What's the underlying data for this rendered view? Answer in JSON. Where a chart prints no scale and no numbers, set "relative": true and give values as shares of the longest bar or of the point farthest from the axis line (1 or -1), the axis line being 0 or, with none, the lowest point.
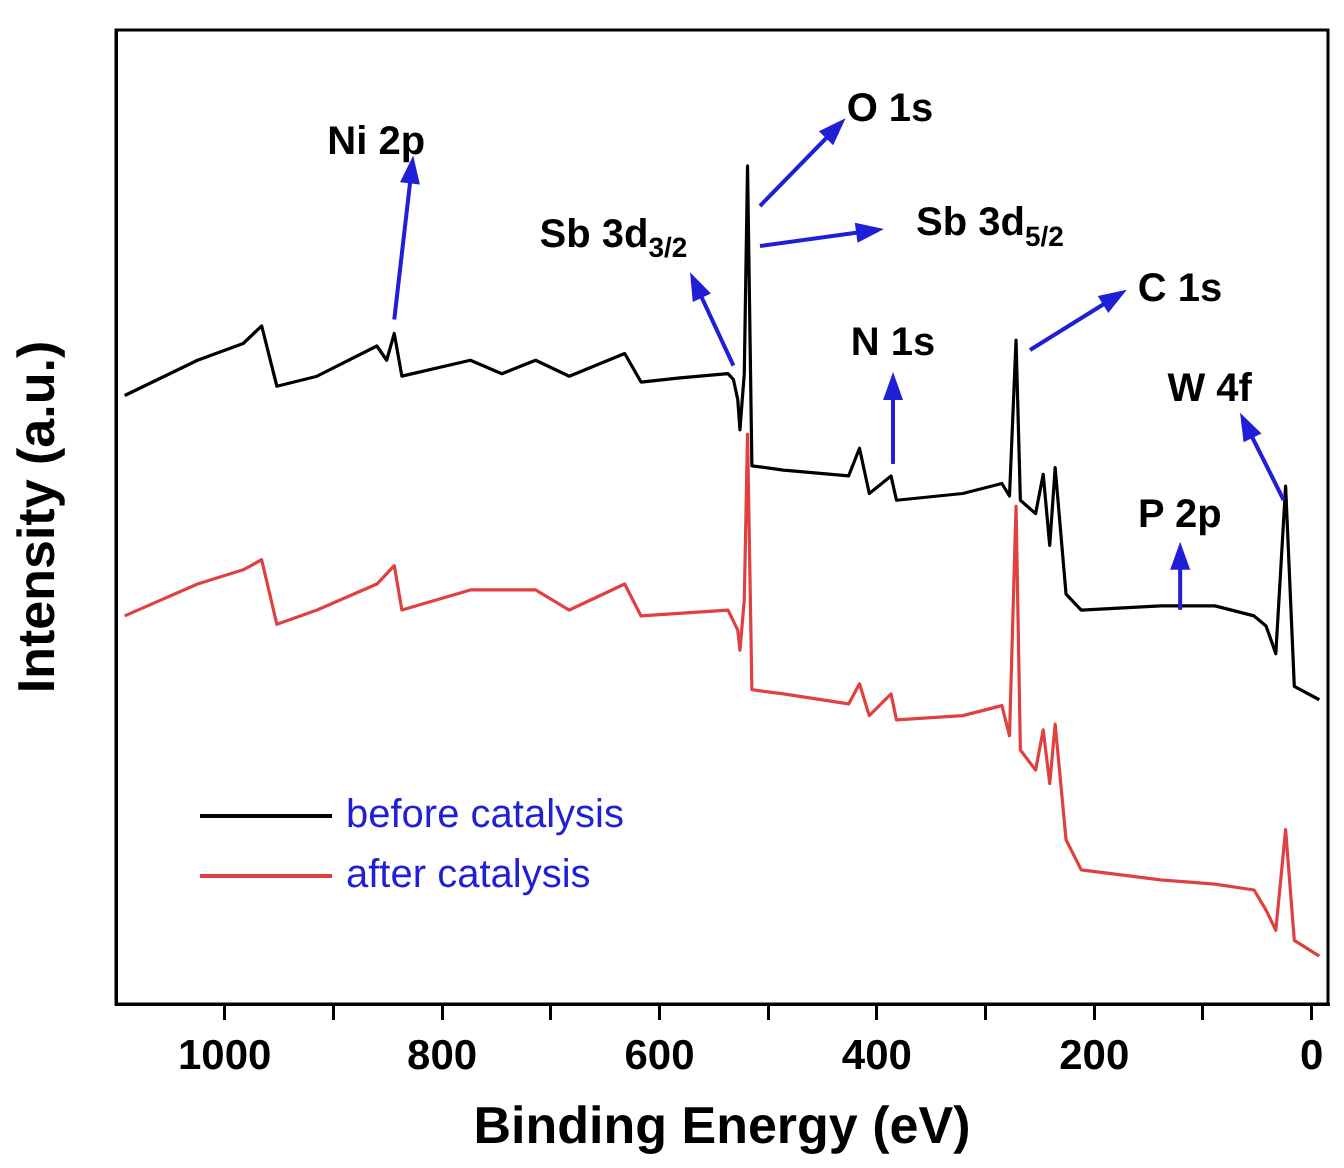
{
  "chart_data": {
    "type": "line",
    "relative": true,
    "xlabel": "Binding Energy (eV)",
    "ylabel": "Intensity (a.u.)",
    "xlim": [
      1100,
      -15
    ],
    "xticks": [
      1000,
      {
        "value": 900,
        "label": null
      },
      800,
      {
        "value": 700,
        "label": null
      },
      600,
      {
        "value": 500,
        "label": null
      },
      400,
      {
        "value": 300,
        "label": null
      },
      200,
      {
        "value": 100,
        "label": null
      },
      0
    ],
    "legend": "bottom left",
    "grid": false,
    "marker": "none",
    "line_style": "solid",
    "series": [
      {
        "name": "before catalysis",
        "color": "#000000",
        "x": [
          1092,
          1025,
          983,
          966,
          952,
          915,
          860,
          851,
          844,
          837,
          774,
          745,
          714,
          683,
          632,
          617,
          581,
          537,
          532,
          528,
          526,
          522,
          519,
          515,
          486,
          426,
          416,
          407,
          387,
          382,
          321,
          285,
          278,
          272,
          268,
          254,
          247,
          241,
          236,
          226,
          212,
          139,
          89,
          53,
          42,
          33,
          24,
          16,
          -7
        ],
        "values": [
          0.726,
          0.768,
          0.788,
          0.809,
          0.737,
          0.749,
          0.785,
          0.768,
          0.8,
          0.749,
          0.768,
          0.752,
          0.768,
          0.749,
          0.776,
          0.742,
          0.747,
          0.752,
          0.745,
          0.721,
          0.685,
          0.752,
          1,
          0.642,
          0.637,
          0.63,
          0.663,
          0.609,
          0.63,
          0.601,
          0.609,
          0.621,
          0.606,
          0.792,
          0.601,
          0.585,
          0.632,
          0.547,
          0.64,
          0.489,
          0.47,
          0.475,
          0.475,
          0.463,
          0.451,
          0.418,
          0.618,
          0.379,
          0.363
        ]
      },
      {
        "name": "after catalysis",
        "color": "#e04040",
        "x": [
          1092,
          1025,
          983,
          966,
          952,
          915,
          860,
          844,
          837,
          774,
          714,
          683,
          632,
          617,
          537,
          528,
          526,
          522,
          519,
          515,
          486,
          426,
          416,
          407,
          387,
          382,
          321,
          285,
          278,
          272,
          268,
          254,
          247,
          241,
          236,
          226,
          212,
          139,
          89,
          53,
          42,
          33,
          24,
          16,
          -7
        ],
        "values": [
          0.463,
          0.501,
          0.518,
          0.53,
          0.453,
          0.47,
          0.501,
          0.523,
          0.47,
          0.494,
          0.494,
          0.47,
          0.501,
          0.463,
          0.47,
          0.446,
          0.422,
          0.482,
          0.68,
          0.375,
          0.37,
          0.358,
          0.382,
          0.344,
          0.37,
          0.339,
          0.344,
          0.356,
          0.32,
          0.594,
          0.303,
          0.279,
          0.327,
          0.263,
          0.334,
          0.196,
          0.16,
          0.148,
          0.143,
          0.136,
          0.112,
          0.088,
          0.208,
          0.076,
          0.057
        ]
      }
    ],
    "annotations": [
      {
        "text": "Ni 2p",
        "x": 844,
        "y": 0.8
      },
      {
        "text": "Sb 3d$_{3/2}$",
        "x": 532,
        "y": 0.745
      },
      "O 1s",
      "Sb 3d$_{5/2}$",
      {
        "text": "N 1s",
        "x": 387,
        "y": 0.63
      },
      "C 1s",
      {
        "text": "P 2p",
        "x": 121,
        "y": 0.475
      },
      {
        "text": "W 4f",
        "x": 24,
        "y": 0.618
      }
    ]
  }
}
